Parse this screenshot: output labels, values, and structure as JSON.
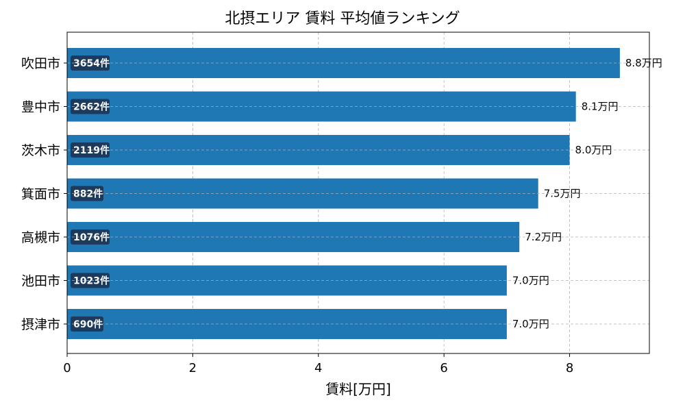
{
  "chart_data": {
    "type": "bar",
    "orientation": "horizontal",
    "title": "北摂エリア 賃料 平均値ランキング",
    "xlabel": "賃料[万円]",
    "ylabel": "",
    "categories": [
      "吹田市",
      "豊中市",
      "茨木市",
      "箕面市",
      "高槻市",
      "池田市",
      "摂津市"
    ],
    "values": [
      8.8,
      8.1,
      8.0,
      7.5,
      7.2,
      7.0,
      7.0
    ],
    "value_labels": [
      "8.8万円",
      "8.1万円",
      "8.0万円",
      "7.5万円",
      "7.2万円",
      "7.0万円",
      "7.0万円"
    ],
    "count_labels": [
      "3654件",
      "2662件",
      "2119件",
      "882件",
      "1076件",
      "1023件",
      "690件"
    ],
    "xlim": [
      0,
      9.27
    ],
    "xticks": [
      0,
      2,
      4,
      6,
      8
    ],
    "xtick_labels": [
      "0",
      "2",
      "4",
      "6",
      "8"
    ],
    "grid": true,
    "colors": {
      "bar": "#1f77b4",
      "badge": "#1b3a5c",
      "grid": "#b0b0b0"
    }
  }
}
